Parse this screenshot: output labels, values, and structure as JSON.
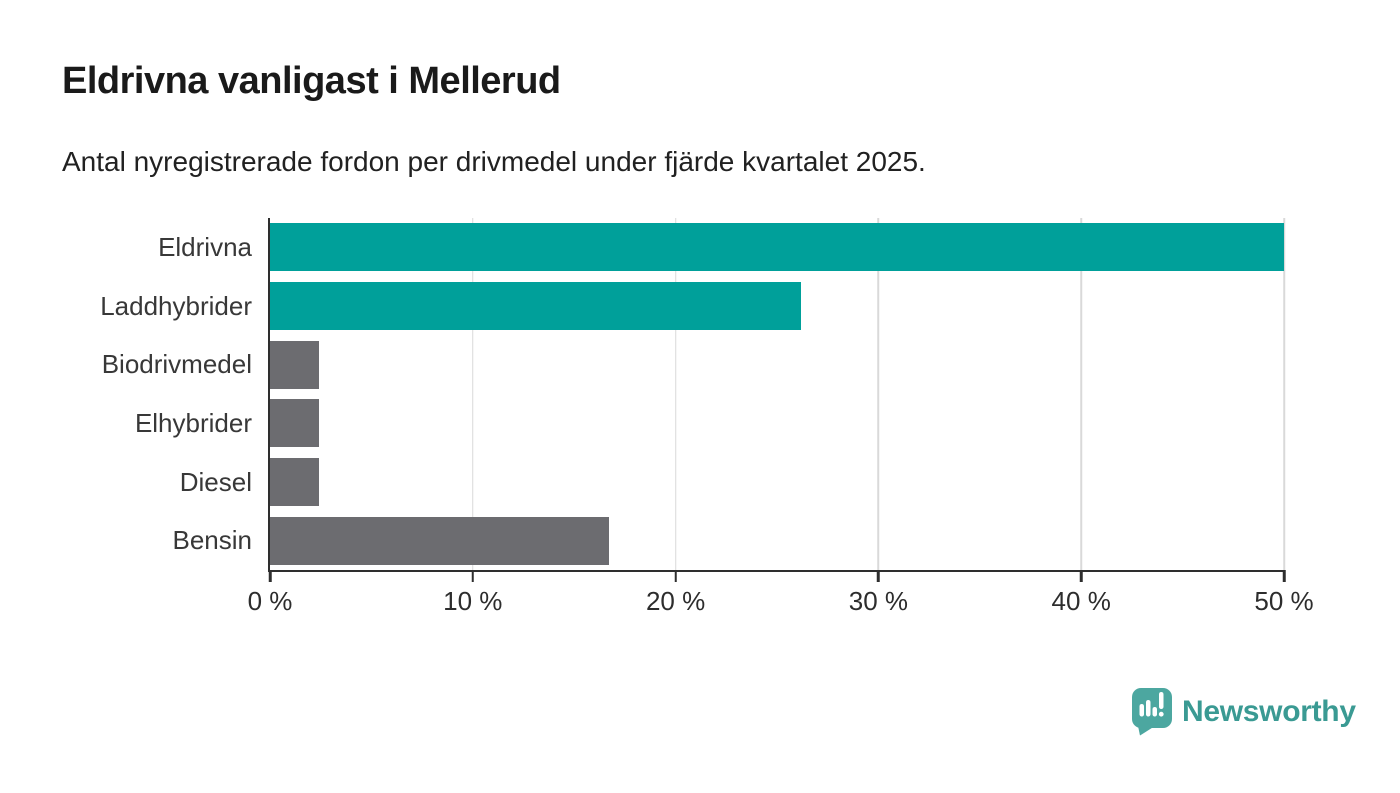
{
  "header": {
    "title": "Eldrivna vanligast i Mellerud",
    "subtitle": "Antal nyregistrerade fordon per drivmedel under fjärde kvartalet 2025."
  },
  "chart_data": {
    "type": "bar",
    "orientation": "horizontal",
    "title": "Eldrivna vanligast i Mellerud",
    "subtitle": "Antal nyregistrerade fordon per drivmedel under fjärde kvartalet 2025.",
    "categories": [
      "Eldrivna",
      "Laddhybrider",
      "Biodrivmedel",
      "Elhybrider",
      "Diesel",
      "Bensin"
    ],
    "values": [
      50.0,
      26.2,
      2.4,
      2.4,
      2.4,
      16.7
    ],
    "unit": "%",
    "bar_colors": [
      "#00a09a",
      "#00a09a",
      "#6c6c70",
      "#6c6c70",
      "#6c6c70",
      "#6c6c70"
    ],
    "xlabel": "",
    "ylabel": "",
    "xlim": [
      0,
      50
    ],
    "x_ticks": [
      0,
      10,
      20,
      30,
      40,
      50
    ],
    "x_tick_labels": [
      "0 %",
      "10 %",
      "20 %",
      "30 %",
      "40 %",
      "50 %"
    ],
    "grid": "vertical-gridlines-on",
    "legend": "none"
  },
  "colors": {
    "accent_teal": "#00a09a",
    "neutral_gray": "#6c6c70",
    "axis": "#2e2e2e",
    "gridline": "#d9d9d9",
    "title_text": "#1a1a1a",
    "label_text": "#383838",
    "logo_icon_teal": "#4ca7a0",
    "logo_text_teal": "#3a9a93"
  },
  "footer": {
    "brand": "Newsworthy"
  }
}
